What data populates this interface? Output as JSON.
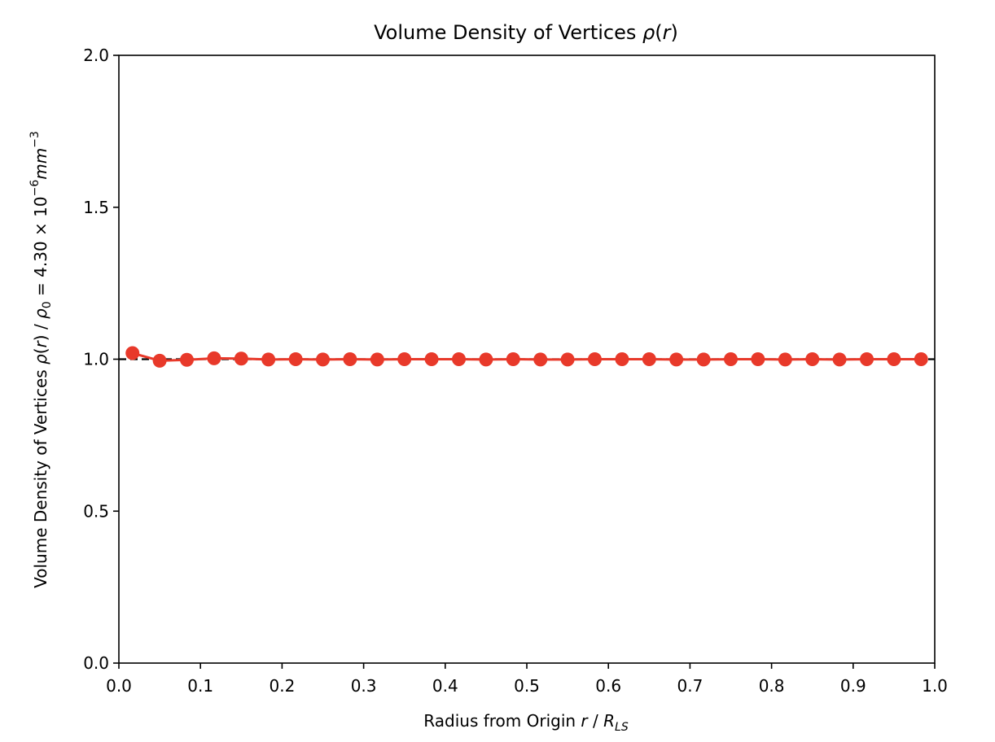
{
  "chart_data": {
    "type": "line",
    "title": {
      "main": "Volume Density of Vertices ",
      "symbol": "ρ",
      "open": "(",
      "arg": "r",
      "close": ")"
    },
    "xlabel": {
      "prefix": "Radius from Origin ",
      "var": "r",
      "sep": " / ",
      "R": "R",
      "sub": "LS"
    },
    "ylabel": {
      "prefix": "Volume Density of Vertices ",
      "rho": "ρ",
      "open": "(",
      "arg": "r",
      "close": ")",
      "sep": " / ",
      "rho0": "ρ",
      "zero": "0",
      "equals": " = 4.30 × 10",
      "exp": "−6",
      "unit": "mm",
      "unitexp": "−3"
    },
    "xlim": [
      0.0,
      1.0
    ],
    "ylim": [
      0.0,
      2.0
    ],
    "xticks": [
      "0.0",
      "0.1",
      "0.2",
      "0.3",
      "0.4",
      "0.5",
      "0.6",
      "0.7",
      "0.8",
      "0.9",
      "1.0"
    ],
    "yticks": [
      "0.0",
      "0.5",
      "1.0",
      "1.5",
      "2.0"
    ],
    "reference_line": {
      "y": 1.0,
      "style": "dashed",
      "color": "#000000"
    },
    "series": [
      {
        "color": "#e8392a",
        "x": [
          0.0167,
          0.05,
          0.0833,
          0.1167,
          0.15,
          0.1833,
          0.2167,
          0.25,
          0.2833,
          0.3167,
          0.35,
          0.3833,
          0.4167,
          0.45,
          0.4833,
          0.5167,
          0.55,
          0.5833,
          0.6167,
          0.65,
          0.6833,
          0.7167,
          0.75,
          0.7833,
          0.8167,
          0.85,
          0.8833,
          0.9167,
          0.95,
          0.9833
        ],
        "y": [
          1.02,
          0.995,
          0.998,
          1.003,
          1.002,
          0.999,
          1.0,
          0.999,
          1.0,
          0.999,
          1.0,
          1.0,
          1.0,
          0.999,
          1.0,
          0.999,
          0.999,
          1.0,
          1.0,
          1.0,
          0.999,
          0.999,
          1.0,
          1.0,
          0.999,
          1.0,
          0.999,
          1.0,
          1.0,
          1.0
        ]
      }
    ],
    "grid": false,
    "legend": "none"
  }
}
